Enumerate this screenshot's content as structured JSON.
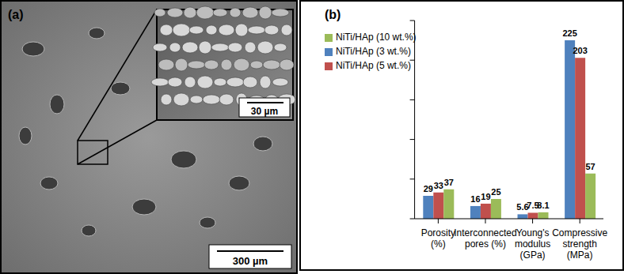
{
  "image_panel": {
    "label": "(a)",
    "inset_scale_bar": "30 µm",
    "scale_bar": "300 µm"
  },
  "chart_data": {
    "type": "bar",
    "title": "(b)",
    "categories": [
      "Porosity\n(%)",
      "Interconnected\npores (%)",
      "Young's\nmodulus\n(GPa)",
      "Compressive\nstrength\n(MPa)"
    ],
    "series": [
      {
        "name": "NiTi/HAp (3 wt.%)",
        "color": "#4f81bd",
        "values": [
          29,
          16,
          5.6,
          225
        ]
      },
      {
        "name": "NiTi/HAp (5 wt.%)",
        "color": "#c0504d",
        "values": [
          33,
          19,
          7.5,
          203
        ]
      },
      {
        "name": "NiTi/HAp (10 wt.%)",
        "color": "#9bbb59",
        "values": [
          37,
          25,
          8.1,
          57
        ]
      }
    ],
    "ylim": [
      0,
      250
    ],
    "yticks": [
      0,
      50,
      100,
      150,
      200,
      250
    ],
    "grid": false,
    "legend": "upper left",
    "data_labels": true,
    "tick_labels": "x"
  }
}
